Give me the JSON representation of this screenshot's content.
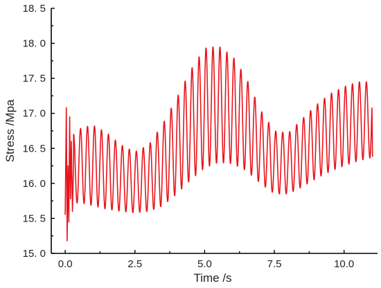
{
  "chart_data": {
    "type": "line",
    "title": "",
    "xlabel": "Time /s",
    "ylabel": "Stress /Mpa",
    "xlim": [
      -0.5,
      11.2
    ],
    "ylim": [
      15.0,
      18.5
    ],
    "x_ticks": [
      0.0,
      2.5,
      5.0,
      7.5,
      10.0
    ],
    "x_tick_labels": [
      "0.0",
      "2.5",
      "5.0",
      "7.5",
      "10.0"
    ],
    "y_ticks": [
      15.0,
      15.5,
      16.0,
      16.5,
      17.0,
      17.5,
      18.0,
      18.5
    ],
    "y_tick_labels": [
      "15. 0",
      "15. 5",
      "16. 0",
      "16. 5",
      "17. 0",
      "17. 5",
      "18. 0",
      "18. 5"
    ],
    "grid": false,
    "legend": "none",
    "oscillation_period_s": 0.25,
    "series": [
      {
        "color": "#e8141b",
        "startup_transient": {
          "x": [
            0.0,
            0.04,
            0.07,
            0.1,
            0.13,
            0.16,
            0.19,
            0.22,
            0.26,
            0.3
          ],
          "y": [
            15.55,
            17.08,
            15.18,
            16.25,
            15.45,
            16.95,
            15.78,
            16.6,
            15.6,
            16.3
          ]
        },
        "envelope": {
          "x": [
            0.3,
            0.6,
            1.0,
            1.5,
            2.0,
            2.5,
            3.0,
            3.5,
            4.0,
            4.5,
            5.0,
            5.5,
            6.0,
            6.5,
            7.0,
            7.5,
            8.0,
            8.5,
            9.0,
            9.5,
            10.0,
            10.5,
            11.0
          ],
          "peak": [
            16.7,
            16.8,
            16.83,
            16.72,
            16.55,
            16.45,
            16.55,
            16.85,
            17.22,
            17.62,
            17.93,
            17.96,
            17.82,
            17.5,
            17.05,
            16.75,
            16.72,
            16.92,
            17.12,
            17.28,
            17.38,
            17.45,
            17.45
          ],
          "trough": [
            15.72,
            15.72,
            15.68,
            15.63,
            15.6,
            15.58,
            15.6,
            15.68,
            15.85,
            16.05,
            16.22,
            16.3,
            16.28,
            16.18,
            16.0,
            15.85,
            15.85,
            15.95,
            16.07,
            16.17,
            16.25,
            16.32,
            16.37
          ]
        },
        "end_value": 16.38
      }
    ]
  }
}
